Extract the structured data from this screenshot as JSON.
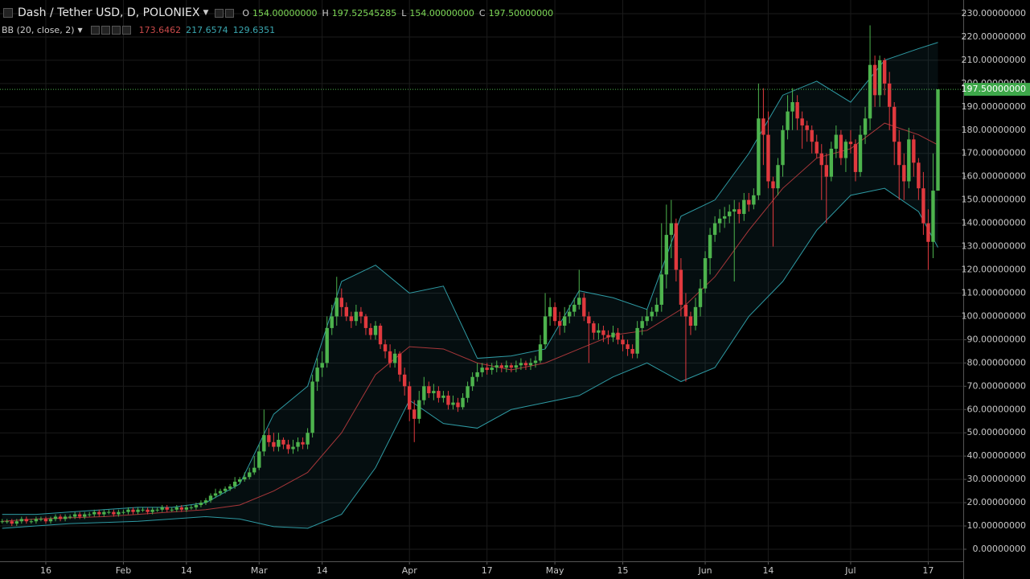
{
  "chart_data": {
    "type": "candlestick",
    "title": "Dash / Tether USD, D, POLONIEX",
    "legend": {
      "labels": [
        "O",
        "H",
        "L",
        "C"
      ],
      "value_labels": [
        "154.00000000",
        "197.52545285",
        "154.00000000",
        "197.50000000"
      ]
    },
    "x": [
      "Jan 7",
      "Jan 8",
      "Jan 9",
      "Jan 10",
      "Jan 11",
      "Jan 12",
      "Jan 13",
      "Jan 14",
      "Jan 15",
      "Jan 16",
      "Jan 17",
      "Jan 18",
      "Jan 19",
      "Jan 20",
      "Jan 21",
      "Jan 22",
      "Jan 23",
      "Jan 24",
      "Jan 25",
      "Jan 26",
      "Jan 27",
      "Jan 28",
      "Jan 29",
      "Jan 30",
      "Jan 31",
      "Feb 1",
      "Feb 2",
      "Feb 3",
      "Feb 4",
      "Feb 5",
      "Feb 6",
      "Feb 7",
      "Feb 8",
      "Feb 9",
      "Feb 10",
      "Feb 11",
      "Feb 12",
      "Feb 13",
      "Feb 14",
      "Feb 15",
      "Feb 16",
      "Feb 17",
      "Feb 18",
      "Feb 19",
      "Feb 20",
      "Feb 21",
      "Feb 22",
      "Feb 23",
      "Feb 24",
      "Feb 25",
      "Feb 26",
      "Feb 27",
      "Feb 28",
      "Mar 1",
      "Mar 2",
      "Mar 3",
      "Mar 4",
      "Mar 5",
      "Mar 6",
      "Mar 7",
      "Mar 8",
      "Mar 9",
      "Mar 10",
      "Mar 11",
      "Mar 12",
      "Mar 13",
      "Mar 14",
      "Mar 15",
      "Mar 16",
      "Mar 17",
      "Mar 18",
      "Mar 19",
      "Mar 20",
      "Mar 21",
      "Mar 22",
      "Mar 23",
      "Mar 24",
      "Mar 25",
      "Mar 26",
      "Mar 27",
      "Mar 28",
      "Mar 29",
      "Mar 30",
      "Mar 31",
      "Apr 1",
      "Apr 2",
      "Apr 3",
      "Apr 4",
      "Apr 5",
      "Apr 6",
      "Apr 7",
      "Apr 8",
      "Apr 9",
      "Apr 10",
      "Apr 11",
      "Apr 12",
      "Apr 13",
      "Apr 14",
      "Apr 15",
      "Apr 16",
      "Apr 17",
      "Apr 18",
      "Apr 19",
      "Apr 20",
      "Apr 21",
      "Apr 22",
      "Apr 23",
      "Apr 24",
      "Apr 25",
      "Apr 26",
      "Apr 27",
      "Apr 28",
      "Apr 29",
      "Apr 30",
      "May 1",
      "May 2",
      "May 3",
      "May 4",
      "May 5",
      "May 6",
      "May 7",
      "May 8",
      "May 9",
      "May 10",
      "May 11",
      "May 12",
      "May 13",
      "May 14",
      "May 15",
      "May 16",
      "May 17",
      "May 18",
      "May 19",
      "May 20",
      "May 21",
      "May 22",
      "May 23",
      "May 24",
      "May 25",
      "May 26",
      "May 27",
      "May 28",
      "May 29",
      "May 30",
      "May 31",
      "Jun 1",
      "Jun 2",
      "Jun 3",
      "Jun 4",
      "Jun 5",
      "Jun 6",
      "Jun 7",
      "Jun 8",
      "Jun 9",
      "Jun 10",
      "Jun 11",
      "Jun 12",
      "Jun 13",
      "Jun 14",
      "Jun 15",
      "Jun 16",
      "Jun 17",
      "Jun 18",
      "Jun 19",
      "Jun 20",
      "Jun 21",
      "Jun 22",
      "Jun 23",
      "Jun 24",
      "Jun 25",
      "Jun 26",
      "Jun 27",
      "Jun 28",
      "Jun 29",
      "Jun 30",
      "Jul 1",
      "Jul 2",
      "Jul 3",
      "Jul 4",
      "Jul 5",
      "Jul 6",
      "Jul 7",
      "Jul 8",
      "Jul 9",
      "Jul 10",
      "Jul 11",
      "Jul 12",
      "Jul 13",
      "Jul 14",
      "Jul 15",
      "Jul 16",
      "Jul 17",
      "Jul 18",
      "Jul 19"
    ],
    "open": [
      12,
      12,
      12,
      11,
      12,
      13,
      12,
      12,
      13,
      13,
      12,
      13,
      14,
      13,
      14,
      14,
      15,
      14,
      15,
      15,
      16,
      15,
      16,
      16,
      15,
      16,
      16,
      17,
      16,
      17,
      17,
      16,
      17,
      17,
      18,
      17,
      17,
      18,
      17,
      18,
      18,
      19,
      20,
      21,
      23,
      24,
      25,
      26,
      27,
      29,
      30,
      31,
      33,
      35,
      42,
      49,
      46,
      44,
      47,
      45,
      43,
      44,
      46,
      45,
      50,
      72,
      78,
      80,
      95,
      100,
      108,
      104,
      100,
      98,
      102,
      100,
      95,
      92,
      96,
      88,
      85,
      80,
      84,
      75,
      70,
      60,
      56,
      64,
      70,
      67,
      68,
      65,
      66,
      62,
      63,
      61,
      65,
      70,
      74,
      76,
      78,
      77,
      78,
      79,
      78,
      79,
      78,
      79,
      80,
      79,
      80,
      81,
      88,
      100,
      104,
      98,
      96,
      100,
      102,
      105,
      108,
      100,
      97,
      93,
      94,
      92,
      91,
      93,
      90,
      88,
      86,
      84,
      95,
      98,
      100,
      102,
      105,
      118,
      135,
      140,
      120,
      105,
      100,
      96,
      104,
      112,
      125,
      135,
      140,
      142,
      143,
      145,
      146,
      144,
      150,
      148,
      152,
      185,
      178,
      158,
      155,
      165,
      180,
      188,
      192,
      185,
      182,
      180,
      175,
      170,
      165,
      160,
      172,
      178,
      168,
      175,
      174,
      162,
      178,
      185,
      208,
      195,
      210,
      200,
      190,
      175,
      165,
      158,
      176,
      166,
      155,
      140,
      132,
      154
    ],
    "high": [
      13,
      13,
      13,
      13,
      14,
      14,
      13,
      14,
      14,
      14,
      14,
      15,
      15,
      15,
      15,
      16,
      16,
      16,
      16,
      17,
      17,
      17,
      17,
      17,
      17,
      17,
      18,
      18,
      18,
      18,
      18,
      18,
      18,
      19,
      19,
      18,
      19,
      19,
      19,
      19,
      20,
      21,
      22,
      24,
      26,
      26,
      27,
      28,
      31,
      31,
      33,
      35,
      40,
      45,
      60,
      52,
      50,
      50,
      48,
      47,
      47,
      48,
      48,
      52,
      75,
      82,
      85,
      100,
      105,
      117,
      112,
      106,
      102,
      105,
      104,
      101,
      97,
      98,
      97,
      90,
      88,
      86,
      85,
      78,
      72,
      64,
      68,
      74,
      72,
      71,
      70,
      68,
      68,
      66,
      65,
      67,
      72,
      76,
      80,
      80,
      80,
      80,
      81,
      80,
      81,
      80,
      81,
      82,
      81,
      82,
      83,
      92,
      110,
      108,
      106,
      102,
      104,
      105,
      108,
      120,
      110,
      102,
      98,
      97,
      96,
      94,
      96,
      95,
      92,
      90,
      88,
      98,
      100,
      103,
      104,
      108,
      140,
      148,
      150,
      142,
      125,
      110,
      102,
      108,
      116,
      128,
      138,
      143,
      146,
      147,
      148,
      150,
      149,
      153,
      153,
      155,
      200,
      198,
      188,
      160,
      168,
      182,
      195,
      198,
      195,
      188,
      184,
      182,
      178,
      174,
      170,
      175,
      182,
      180,
      176,
      180,
      176,
      182,
      190,
      225,
      212,
      212,
      211,
      205,
      192,
      180,
      170,
      181,
      178,
      168,
      162,
      146,
      170,
      197.52545285
    ],
    "low": [
      11,
      11,
      10,
      10,
      11,
      11,
      11,
      11,
      12,
      11,
      11,
      12,
      12,
      12,
      13,
      13,
      13,
      13,
      14,
      14,
      14,
      14,
      15,
      14,
      14,
      15,
      15,
      15,
      15,
      16,
      15,
      15,
      16,
      16,
      16,
      16,
      16,
      16,
      16,
      17,
      17,
      18,
      19,
      20,
      22,
      23,
      24,
      25,
      26,
      28,
      29,
      30,
      32,
      34,
      40,
      44,
      42,
      42,
      43,
      41,
      41,
      42,
      43,
      43,
      48,
      68,
      74,
      78,
      92,
      96,
      100,
      98,
      95,
      96,
      97,
      92,
      90,
      90,
      86,
      82,
      78,
      78,
      72,
      66,
      55,
      46,
      54,
      62,
      65,
      64,
      63,
      63,
      60,
      60,
      59,
      60,
      63,
      68,
      72,
      74,
      75,
      75,
      76,
      76,
      76,
      76,
      76,
      77,
      77,
      77,
      78,
      80,
      86,
      96,
      96,
      92,
      93,
      97,
      100,
      103,
      98,
      80,
      90,
      90,
      89,
      88,
      89,
      88,
      85,
      83,
      82,
      82,
      92,
      96,
      98,
      100,
      102,
      112,
      125,
      115,
      100,
      72,
      92,
      94,
      100,
      110,
      118,
      132,
      136,
      138,
      140,
      115,
      140,
      141,
      145,
      146,
      150,
      165,
      155,
      130,
      152,
      160,
      176,
      180,
      180,
      172,
      175,
      170,
      168,
      150,
      140,
      158,
      168,
      165,
      162,
      170,
      158,
      160,
      174,
      180,
      190,
      190,
      195,
      180,
      165,
      150,
      150,
      155,
      160,
      150,
      135,
      120,
      125,
      154
    ],
    "close": [
      12,
      12,
      11,
      12,
      13,
      12,
      12,
      13,
      13,
      12,
      13,
      14,
      13,
      14,
      14,
      15,
      14,
      15,
      15,
      16,
      15,
      16,
      16,
      15,
      16,
      16,
      17,
      16,
      17,
      17,
      16,
      17,
      17,
      18,
      17,
      17,
      18,
      17,
      18,
      18,
      19,
      20,
      21,
      23,
      24,
      25,
      26,
      27,
      29,
      30,
      31,
      33,
      35,
      42,
      49,
      46,
      44,
      47,
      45,
      43,
      44,
      46,
      45,
      50,
      72,
      78,
      80,
      95,
      100,
      108,
      104,
      100,
      98,
      102,
      100,
      95,
      92,
      96,
      88,
      85,
      80,
      84,
      75,
      70,
      60,
      56,
      64,
      70,
      67,
      68,
      65,
      66,
      62,
      63,
      61,
      65,
      70,
      74,
      76,
      78,
      77,
      78,
      79,
      78,
      79,
      78,
      79,
      80,
      79,
      80,
      81,
      88,
      100,
      104,
      98,
      96,
      100,
      102,
      105,
      108,
      100,
      97,
      93,
      94,
      92,
      91,
      93,
      90,
      88,
      86,
      84,
      95,
      98,
      100,
      102,
      105,
      118,
      135,
      140,
      120,
      105,
      100,
      96,
      104,
      112,
      125,
      135,
      140,
      142,
      143,
      145,
      146,
      144,
      150,
      148,
      152,
      185,
      178,
      158,
      155,
      165,
      180,
      188,
      192,
      185,
      182,
      180,
      175,
      170,
      165,
      160,
      172,
      178,
      168,
      175,
      174,
      162,
      178,
      185,
      208,
      195,
      210,
      200,
      190,
      175,
      165,
      158,
      176,
      166,
      155,
      140,
      132,
      154,
      197.5
    ],
    "up_color": "#4db34d",
    "down_color": "#e0393e",
    "ylim": [
      -5.18,
      235.87
    ],
    "yticks": [
      {
        "value": 0,
        "label": "0.00000000"
      },
      {
        "value": 10,
        "label": "10.00000000"
      },
      {
        "value": 20,
        "label": "20.00000000"
      },
      {
        "value": 30,
        "label": "30.00000000"
      },
      {
        "value": 40,
        "label": "40.00000000"
      },
      {
        "value": 50,
        "label": "50.00000000"
      },
      {
        "value": 60,
        "label": "60.00000000"
      },
      {
        "value": 70,
        "label": "70.00000000"
      },
      {
        "value": 80,
        "label": "80.00000000"
      },
      {
        "value": 90,
        "label": "90.00000000"
      },
      {
        "value": 100,
        "label": "100.00000000"
      },
      {
        "value": 110,
        "label": "110.00000000"
      },
      {
        "value": 120,
        "label": "120.00000000"
      },
      {
        "value": 130,
        "label": "130.00000000"
      },
      {
        "value": 140,
        "label": "140.00000000"
      },
      {
        "value": 150,
        "label": "150.00000000"
      },
      {
        "value": 160,
        "label": "160.00000000"
      },
      {
        "value": 170,
        "label": "170.00000000"
      },
      {
        "value": 180,
        "label": "180.00000000"
      },
      {
        "value": 190,
        "label": "190.00000000"
      },
      {
        "value": 200,
        "label": "200.00000000"
      },
      {
        "value": 210,
        "label": "210.00000000"
      },
      {
        "value": 220,
        "label": "220.00000000"
      },
      {
        "value": 230,
        "label": "230.00000000"
      }
    ],
    "xticks": [
      {
        "value": "Jan 16",
        "label": "16"
      },
      {
        "value": "Feb 1",
        "label": "Feb"
      },
      {
        "value": "Feb 14",
        "label": "14"
      },
      {
        "value": "Mar 1",
        "label": "Mar"
      },
      {
        "value": "Mar 14",
        "label": "14"
      },
      {
        "value": "Apr 1",
        "label": "Apr"
      },
      {
        "value": "Apr 17",
        "label": "17"
      },
      {
        "value": "May 1",
        "label": "May"
      },
      {
        "value": "May 15",
        "label": "15"
      },
      {
        "value": "Jun 1",
        "label": "Jun"
      },
      {
        "value": "Jun 14",
        "label": "14"
      },
      {
        "value": "Jul 1",
        "label": "Jul"
      },
      {
        "value": "Jul 17",
        "label": "17"
      }
    ],
    "grid": true,
    "bands": {
      "name": "BB (20, close, 2)",
      "x": [
        "Jan 7",
        "Jan 14",
        "Jan 21",
        "Jan 28",
        "Feb 4",
        "Feb 11",
        "Feb 18",
        "Feb 25",
        "Mar 4",
        "Mar 11",
        "Mar 18",
        "Mar 25",
        "Apr 1",
        "Apr 8",
        "Apr 15",
        "Apr 22",
        "Apr 29",
        "May 6",
        "May 13",
        "May 20",
        "May 27",
        "Jun 3",
        "Jun 10",
        "Jun 17",
        "Jun 24",
        "Jul 1",
        "Jul 8",
        "Jul 15",
        "Jul 19"
      ],
      "series": [
        {
          "color": "#a8373a",
          "values": [
            12,
            13,
            13.5,
            14,
            15,
            16,
            17,
            19,
            25,
            33,
            50,
            75,
            87,
            86,
            80,
            77,
            80,
            86,
            92,
            94,
            103,
            117,
            137,
            155,
            168,
            172,
            183,
            178,
            173.6462
          ]
        },
        {
          "color": "#2e9aa3",
          "values": [
            15,
            15,
            16,
            17,
            18,
            18,
            20,
            28,
            58,
            70,
            115,
            122,
            110,
            113,
            82,
            83,
            86,
            111,
            108,
            103,
            143,
            150,
            170,
            195,
            201,
            192,
            210,
            215,
            217.6574
          ]
        },
        {
          "color": "#2e9aa3",
          "values": [
            9,
            10,
            11,
            11.5,
            12,
            13,
            14,
            13,
            9.7,
            9,
            15,
            35,
            64,
            54,
            52,
            60,
            63,
            66,
            74,
            80,
            72,
            78,
            100,
            115,
            137,
            152,
            155,
            145,
            129.6351
          ]
        }
      ]
    }
  }
}
